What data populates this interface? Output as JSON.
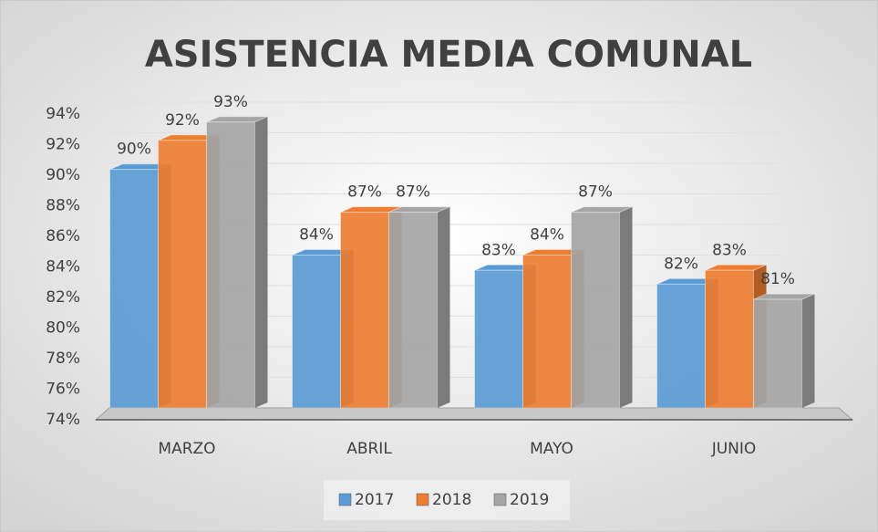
{
  "chart_data": {
    "type": "bar3d",
    "title": "ASISTENCIA MEDIA  COMUNAL",
    "categories": [
      "MARZO",
      "ABRIL",
      "MAYO",
      "JUNIO"
    ],
    "series": [
      {
        "name": "2017",
        "color": "#5b9bd5",
        "values": [
          89.6,
          84,
          83,
          82.1
        ],
        "value_labels": [
          "90%",
          "84%",
          "83%",
          "82%"
        ]
      },
      {
        "name": "2018",
        "color": "#ed7d31",
        "values": [
          91.5,
          86.8,
          84,
          83
        ],
        "value_labels": [
          "92%",
          "87%",
          "84%",
          "83%"
        ]
      },
      {
        "name": "2019",
        "color": "#a5a5a5",
        "values": [
          92.7,
          86.8,
          86.8,
          81.1
        ],
        "value_labels": [
          "93%",
          "87%",
          "87%",
          "81%"
        ]
      }
    ],
    "ylim": [
      74,
      94
    ],
    "yticks": [
      {
        "value": 74,
        "label": "74%"
      },
      {
        "value": 76,
        "label": "76%"
      },
      {
        "value": 78,
        "label": "78%"
      },
      {
        "value": 80,
        "label": "80%"
      },
      {
        "value": 82,
        "label": "82%"
      },
      {
        "value": 84,
        "label": "84%"
      },
      {
        "value": 86,
        "label": "86%"
      },
      {
        "value": 88,
        "label": "88%"
      },
      {
        "value": 90,
        "label": "90%"
      },
      {
        "value": 92,
        "label": "92%"
      },
      {
        "value": 94,
        "label": "94%"
      }
    ],
    "grid": true,
    "legend": "bottom"
  }
}
